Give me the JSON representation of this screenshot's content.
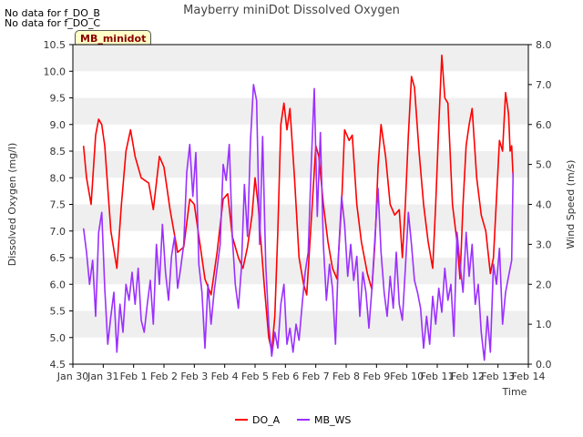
{
  "notes": [
    "No data for f_DO_B",
    "No data for f_DO_C"
  ],
  "tag_label": "MB_minidot",
  "chart_data": {
    "type": "line",
    "title": "Mayberry miniDot Dissolved Oxygen",
    "xlabel": "Time",
    "ylabel": "Dissolved Oxygen (mg/l)",
    "y2label": "Wind Speed (m/s)",
    "xlim": [
      0,
      15
    ],
    "ylim": [
      4.5,
      10.5
    ],
    "y2lim": [
      0.0,
      8.0
    ],
    "x_ticks": [
      {
        "x": 0,
        "label": "Jan 30"
      },
      {
        "x": 1,
        "label": "Jan 31"
      },
      {
        "x": 2,
        "label": "Feb 1"
      },
      {
        "x": 3,
        "label": "Feb 2"
      },
      {
        "x": 4,
        "label": "Feb 3"
      },
      {
        "x": 5,
        "label": "Feb 4"
      },
      {
        "x": 6,
        "label": "Feb 5"
      },
      {
        "x": 7,
        "label": "Feb 6"
      },
      {
        "x": 8,
        "label": "Feb 7"
      },
      {
        "x": 9,
        "label": "Feb 8"
      },
      {
        "x": 10,
        "label": "Feb 9"
      },
      {
        "x": 11,
        "label": "Feb 10"
      },
      {
        "x": 12,
        "label": "Feb 11"
      },
      {
        "x": 13,
        "label": "Feb 12"
      },
      {
        "x": 14,
        "label": "Feb 13"
      },
      {
        "x": 15,
        "label": "Feb 14"
      }
    ],
    "y_ticks": [
      "4.5",
      "5.0",
      "5.5",
      "6.0",
      "6.5",
      "7.0",
      "7.5",
      "8.0",
      "8.5",
      "9.0",
      "9.5",
      "10.0",
      "10.5"
    ],
    "y2_ticks": [
      "0.0",
      "1.0",
      "2.0",
      "3.0",
      "4.0",
      "5.0",
      "6.0",
      "7.0",
      "8.0"
    ],
    "grid": "horizontal bands",
    "legend_position": "bottom",
    "series": [
      {
        "name": "DO_A",
        "color": "#ff0000",
        "axis": "left",
        "points": [
          [
            0.35,
            8.6
          ],
          [
            0.45,
            8.0
          ],
          [
            0.6,
            7.5
          ],
          [
            0.75,
            8.8
          ],
          [
            0.85,
            9.1
          ],
          [
            0.95,
            9.0
          ],
          [
            1.05,
            8.6
          ],
          [
            1.25,
            7.0
          ],
          [
            1.45,
            6.3
          ],
          [
            1.6,
            7.5
          ],
          [
            1.75,
            8.5
          ],
          [
            1.9,
            8.9
          ],
          [
            2.05,
            8.4
          ],
          [
            2.25,
            8.0
          ],
          [
            2.5,
            7.9
          ],
          [
            2.65,
            7.4
          ],
          [
            2.85,
            8.4
          ],
          [
            3.0,
            8.2
          ],
          [
            3.2,
            7.4
          ],
          [
            3.45,
            6.6
          ],
          [
            3.65,
            6.7
          ],
          [
            3.85,
            7.6
          ],
          [
            4.0,
            7.5
          ],
          [
            4.15,
            6.9
          ],
          [
            4.35,
            6.1
          ],
          [
            4.55,
            5.8
          ],
          [
            4.75,
            6.6
          ],
          [
            4.95,
            7.6
          ],
          [
            5.1,
            7.7
          ],
          [
            5.25,
            6.9
          ],
          [
            5.45,
            6.5
          ],
          [
            5.6,
            6.3
          ],
          [
            5.75,
            6.7
          ],
          [
            5.9,
            7.3
          ],
          [
            6.0,
            8.0
          ],
          [
            6.1,
            7.5
          ],
          [
            6.3,
            6.0
          ],
          [
            6.45,
            5.0
          ],
          [
            6.55,
            4.75
          ],
          [
            6.65,
            5.4
          ],
          [
            6.75,
            7.0
          ],
          [
            6.85,
            9.0
          ],
          [
            6.95,
            9.4
          ],
          [
            7.05,
            8.9
          ],
          [
            7.15,
            9.3
          ],
          [
            7.3,
            8.0
          ],
          [
            7.45,
            6.5
          ],
          [
            7.6,
            6.0
          ],
          [
            7.7,
            5.8
          ],
          [
            7.85,
            7.2
          ],
          [
            8.0,
            8.6
          ],
          [
            8.1,
            8.4
          ],
          [
            8.25,
            7.5
          ],
          [
            8.4,
            6.8
          ],
          [
            8.55,
            6.3
          ],
          [
            8.7,
            6.1
          ],
          [
            8.85,
            7.5
          ],
          [
            8.95,
            8.9
          ],
          [
            9.1,
            8.7
          ],
          [
            9.2,
            8.8
          ],
          [
            9.35,
            7.5
          ],
          [
            9.5,
            6.8
          ],
          [
            9.7,
            6.2
          ],
          [
            9.85,
            5.9
          ],
          [
            9.95,
            6.8
          ],
          [
            10.05,
            8.2
          ],
          [
            10.15,
            9.0
          ],
          [
            10.3,
            8.4
          ],
          [
            10.45,
            7.5
          ],
          [
            10.6,
            7.3
          ],
          [
            10.75,
            7.4
          ],
          [
            10.85,
            6.5
          ],
          [
            10.95,
            7.5
          ],
          [
            11.05,
            8.8
          ],
          [
            11.15,
            9.9
          ],
          [
            11.25,
            9.7
          ],
          [
            11.4,
            8.5
          ],
          [
            11.55,
            7.5
          ],
          [
            11.7,
            6.8
          ],
          [
            11.85,
            6.3
          ],
          [
            11.95,
            7.5
          ],
          [
            12.05,
            9.0
          ],
          [
            12.15,
            10.3
          ],
          [
            12.25,
            9.5
          ],
          [
            12.35,
            9.4
          ],
          [
            12.5,
            7.5
          ],
          [
            12.65,
            6.8
          ],
          [
            12.75,
            6.1
          ],
          [
            12.85,
            7.5
          ],
          [
            12.95,
            8.6
          ],
          [
            13.05,
            9.0
          ],
          [
            13.15,
            9.3
          ],
          [
            13.3,
            8.0
          ],
          [
            13.45,
            7.3
          ],
          [
            13.6,
            7.0
          ],
          [
            13.75,
            6.2
          ],
          [
            13.85,
            6.5
          ],
          [
            13.95,
            7.6
          ],
          [
            14.05,
            8.7
          ],
          [
            14.15,
            8.5
          ],
          [
            14.25,
            9.6
          ],
          [
            14.35,
            9.2
          ],
          [
            14.4,
            8.5
          ],
          [
            14.45,
            8.6
          ],
          [
            14.5,
            8.0
          ]
        ]
      },
      {
        "name": "MB_WS",
        "color": "#9b30ff",
        "axis": "right",
        "points": [
          [
            0.35,
            3.4
          ],
          [
            0.45,
            2.8
          ],
          [
            0.55,
            2.0
          ],
          [
            0.65,
            2.6
          ],
          [
            0.75,
            1.2
          ],
          [
            0.85,
            3.3
          ],
          [
            0.95,
            3.8
          ],
          [
            1.05,
            1.9
          ],
          [
            1.15,
            0.5
          ],
          [
            1.25,
            1.2
          ],
          [
            1.35,
            1.8
          ],
          [
            1.45,
            0.3
          ],
          [
            1.55,
            1.5
          ],
          [
            1.65,
            0.8
          ],
          [
            1.75,
            2.0
          ],
          [
            1.85,
            1.6
          ],
          [
            1.95,
            2.3
          ],
          [
            2.05,
            1.5
          ],
          [
            2.15,
            2.4
          ],
          [
            2.25,
            1.1
          ],
          [
            2.35,
            0.8
          ],
          [
            2.45,
            1.5
          ],
          [
            2.55,
            2.1
          ],
          [
            2.65,
            1.0
          ],
          [
            2.75,
            3.0
          ],
          [
            2.85,
            2.0
          ],
          [
            2.95,
            3.5
          ],
          [
            3.05,
            2.3
          ],
          [
            3.15,
            1.6
          ],
          [
            3.25,
            2.7
          ],
          [
            3.35,
            3.2
          ],
          [
            3.45,
            1.9
          ],
          [
            3.55,
            2.4
          ],
          [
            3.65,
            3.0
          ],
          [
            3.75,
            4.8
          ],
          [
            3.85,
            5.5
          ],
          [
            3.95,
            4.2
          ],
          [
            4.05,
            5.3
          ],
          [
            4.15,
            2.5
          ],
          [
            4.25,
            1.8
          ],
          [
            4.35,
            0.4
          ],
          [
            4.45,
            2.0
          ],
          [
            4.55,
            1.0
          ],
          [
            4.65,
            1.8
          ],
          [
            4.75,
            2.4
          ],
          [
            4.85,
            3.0
          ],
          [
            4.95,
            5.0
          ],
          [
            5.05,
            4.6
          ],
          [
            5.15,
            5.5
          ],
          [
            5.25,
            3.2
          ],
          [
            5.35,
            2.0
          ],
          [
            5.45,
            1.4
          ],
          [
            5.55,
            2.4
          ],
          [
            5.65,
            4.5
          ],
          [
            5.75,
            3.2
          ],
          [
            5.85,
            5.6
          ],
          [
            5.95,
            7.0
          ],
          [
            6.05,
            6.6
          ],
          [
            6.15,
            3.0
          ],
          [
            6.25,
            5.7
          ],
          [
            6.35,
            2.5
          ],
          [
            6.45,
            1.0
          ],
          [
            6.55,
            0.2
          ],
          [
            6.65,
            0.8
          ],
          [
            6.75,
            0.4
          ],
          [
            6.85,
            1.5
          ],
          [
            6.95,
            2.0
          ],
          [
            7.05,
            0.5
          ],
          [
            7.15,
            0.9
          ],
          [
            7.25,
            0.3
          ],
          [
            7.35,
            1.0
          ],
          [
            7.45,
            0.6
          ],
          [
            7.55,
            1.5
          ],
          [
            7.65,
            2.3
          ],
          [
            7.75,
            2.8
          ],
          [
            7.85,
            5.0
          ],
          [
            7.95,
            6.9
          ],
          [
            8.05,
            3.7
          ],
          [
            8.15,
            5.8
          ],
          [
            8.25,
            3.0
          ],
          [
            8.35,
            1.6
          ],
          [
            8.45,
            2.5
          ],
          [
            8.55,
            1.9
          ],
          [
            8.65,
            0.5
          ],
          [
            8.75,
            2.8
          ],
          [
            8.85,
            4.2
          ],
          [
            8.95,
            3.5
          ],
          [
            9.05,
            2.2
          ],
          [
            9.15,
            3.0
          ],
          [
            9.25,
            2.1
          ],
          [
            9.35,
            2.7
          ],
          [
            9.45,
            1.2
          ],
          [
            9.55,
            2.3
          ],
          [
            9.65,
            1.8
          ],
          [
            9.75,
            0.9
          ],
          [
            9.85,
            1.9
          ],
          [
            9.95,
            3.2
          ],
          [
            10.05,
            4.4
          ],
          [
            10.15,
            2.8
          ],
          [
            10.25,
            1.8
          ],
          [
            10.35,
            1.2
          ],
          [
            10.45,
            2.2
          ],
          [
            10.55,
            1.4
          ],
          [
            10.65,
            2.8
          ],
          [
            10.75,
            1.5
          ],
          [
            10.85,
            1.1
          ],
          [
            10.95,
            2.4
          ],
          [
            11.05,
            3.8
          ],
          [
            11.15,
            3.0
          ],
          [
            11.25,
            2.1
          ],
          [
            11.35,
            1.8
          ],
          [
            11.45,
            1.4
          ],
          [
            11.55,
            0.4
          ],
          [
            11.65,
            1.2
          ],
          [
            11.75,
            0.5
          ],
          [
            11.85,
            1.7
          ],
          [
            11.95,
            1.0
          ],
          [
            12.05,
            1.9
          ],
          [
            12.15,
            1.3
          ],
          [
            12.25,
            2.4
          ],
          [
            12.35,
            1.6
          ],
          [
            12.45,
            2.0
          ],
          [
            12.55,
            0.7
          ],
          [
            12.65,
            3.3
          ],
          [
            12.75,
            2.5
          ],
          [
            12.85,
            1.8
          ],
          [
            12.95,
            3.3
          ],
          [
            13.05,
            2.2
          ],
          [
            13.15,
            3.0
          ],
          [
            13.25,
            1.5
          ],
          [
            13.35,
            2.0
          ],
          [
            13.45,
            0.8
          ],
          [
            13.55,
            0.1
          ],
          [
            13.65,
            1.2
          ],
          [
            13.75,
            0.3
          ],
          [
            13.85,
            2.5
          ],
          [
            13.95,
            2.0
          ],
          [
            14.05,
            2.9
          ],
          [
            14.15,
            1.0
          ],
          [
            14.25,
            1.8
          ],
          [
            14.35,
            2.2
          ],
          [
            14.45,
            2.6
          ],
          [
            14.5,
            4.8
          ]
        ]
      }
    ]
  }
}
